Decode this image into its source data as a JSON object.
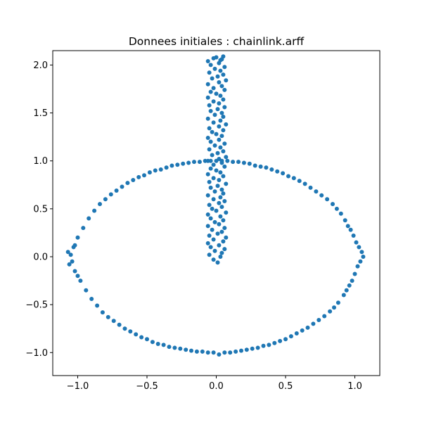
{
  "chart_data": {
    "type": "scatter",
    "title": "Donnees initiales : chainlink.arff",
    "xlabel": "",
    "ylabel": "",
    "xlim": [
      -1.18,
      1.18
    ],
    "ylim": [
      -1.24,
      2.15
    ],
    "xticks": [
      -1.0,
      -0.5,
      0.0,
      0.5,
      1.0
    ],
    "xtick_labels": [
      "−1.0",
      "−0.5",
      "0.0",
      "0.5",
      "1.0"
    ],
    "yticks": [
      -1.0,
      -0.5,
      0.0,
      0.5,
      1.0,
      1.5,
      2.0
    ],
    "ytick_labels": [
      "−1.0",
      "−0.5",
      "0.0",
      "0.5",
      "1.0",
      "1.5",
      "2.0"
    ],
    "grid": false,
    "marker_color": "#1f77b4",
    "series": [
      {
        "points": [
          [
            1.06,
            0.0
          ],
          [
            1.05,
            0.05
          ],
          [
            1.04,
            -0.05
          ],
          [
            1.03,
            0.1
          ],
          [
            1.02,
            -0.1
          ],
          [
            1.01,
            0.15
          ],
          [
            1.0,
            -0.18
          ],
          [
            0.99,
            0.22
          ],
          [
            0.98,
            -0.25
          ],
          [
            0.97,
            0.28
          ],
          [
            0.96,
            -0.3
          ],
          [
            0.95,
            0.32
          ],
          [
            0.94,
            -0.35
          ],
          [
            0.93,
            0.38
          ],
          [
            0.92,
            -0.4
          ],
          [
            0.9,
            0.45
          ],
          [
            0.88,
            -0.48
          ],
          [
            0.87,
            0.5
          ],
          [
            0.85,
            -0.53
          ],
          [
            0.84,
            0.55
          ],
          [
            0.82,
            -0.57
          ],
          [
            0.8,
            0.6
          ],
          [
            0.78,
            -0.62
          ],
          [
            0.76,
            0.64
          ],
          [
            0.74,
            -0.66
          ],
          [
            0.72,
            0.68
          ],
          [
            0.7,
            -0.7
          ],
          [
            0.68,
            0.72
          ],
          [
            0.66,
            -0.74
          ],
          [
            0.64,
            0.76
          ],
          [
            0.62,
            -0.77
          ],
          [
            0.6,
            0.79
          ],
          [
            0.58,
            -0.8
          ],
          [
            0.56,
            0.82
          ],
          [
            0.54,
            -0.83
          ],
          [
            0.52,
            0.84
          ],
          [
            0.5,
            -0.86
          ],
          [
            0.48,
            0.87
          ],
          [
            0.46,
            -0.88
          ],
          [
            0.44,
            0.89
          ],
          [
            0.42,
            -0.9
          ],
          [
            0.4,
            0.91
          ],
          [
            0.38,
            -0.92
          ],
          [
            0.36,
            0.93
          ],
          [
            0.34,
            -0.93
          ],
          [
            0.32,
            0.94
          ],
          [
            0.3,
            -0.95
          ],
          [
            0.28,
            0.95
          ],
          [
            0.26,
            -0.96
          ],
          [
            0.24,
            0.97
          ],
          [
            0.22,
            -0.97
          ],
          [
            0.2,
            0.98
          ],
          [
            0.18,
            -0.98
          ],
          [
            0.16,
            0.99
          ],
          [
            0.14,
            -0.99
          ],
          [
            0.12,
            0.99
          ],
          [
            0.1,
            -1.0
          ],
          [
            0.08,
            1.0
          ],
          [
            0.06,
            -1.0
          ],
          [
            0.04,
            1.0
          ],
          [
            0.02,
            -1.02
          ],
          [
            0.0,
            1.0
          ],
          [
            -0.02,
            -1.0
          ],
          [
            -0.04,
            1.0
          ],
          [
            -0.06,
            -1.0
          ],
          [
            -0.08,
            1.0
          ],
          [
            -0.1,
            -0.99
          ],
          [
            -0.12,
            0.99
          ],
          [
            -0.14,
            -0.99
          ],
          [
            -0.16,
            0.99
          ],
          [
            -0.18,
            -0.98
          ],
          [
            -0.2,
            0.98
          ],
          [
            -0.22,
            -0.97
          ],
          [
            -0.24,
            0.97
          ],
          [
            -0.26,
            -0.96
          ],
          [
            -0.28,
            0.96
          ],
          [
            -0.3,
            -0.95
          ],
          [
            -0.32,
            0.95
          ],
          [
            -0.34,
            -0.94
          ],
          [
            -0.36,
            0.93
          ],
          [
            -0.38,
            -0.92
          ],
          [
            -0.4,
            0.91
          ],
          [
            -0.42,
            -0.91
          ],
          [
            -0.44,
            0.9
          ],
          [
            -0.46,
            -0.89
          ],
          [
            -0.48,
            0.88
          ],
          [
            -0.5,
            -0.86
          ],
          [
            -0.52,
            0.85
          ],
          [
            -0.54,
            -0.84
          ],
          [
            -0.56,
            0.83
          ],
          [
            -0.58,
            -0.81
          ],
          [
            -0.6,
            0.8
          ],
          [
            -0.62,
            -0.78
          ],
          [
            -0.64,
            0.77
          ],
          [
            -0.66,
            -0.75
          ],
          [
            -0.68,
            0.73
          ],
          [
            -0.7,
            -0.71
          ],
          [
            -0.72,
            0.69
          ],
          [
            -0.74,
            -0.67
          ],
          [
            -0.76,
            0.65
          ],
          [
            -0.78,
            -0.63
          ],
          [
            -0.8,
            0.6
          ],
          [
            -0.82,
            -0.58
          ],
          [
            -0.84,
            0.55
          ],
          [
            -0.86,
            -0.51
          ],
          [
            -0.88,
            0.48
          ],
          [
            -0.9,
            -0.44
          ],
          [
            -0.92,
            0.4
          ],
          [
            -0.94,
            -0.35
          ],
          [
            -0.96,
            0.3
          ],
          [
            -0.98,
            -0.25
          ],
          [
            -1.0,
            0.2
          ],
          [
            -1.02,
            -0.15
          ],
          [
            -1.03,
            0.1
          ],
          [
            -1.04,
            -0.05
          ],
          [
            -1.05,
            0.02
          ],
          [
            -1.06,
            -0.08
          ],
          [
            -1.07,
            0.05
          ],
          [
            -1.02,
            0.12
          ],
          [
            -1.0,
            -0.2
          ]
        ]
      },
      {
        "points": [
          [
            0.01,
            -0.06
          ],
          [
            -0.02,
            -0.03
          ],
          [
            0.03,
            0.0
          ],
          [
            -0.05,
            0.02
          ],
          [
            0.04,
            0.04
          ],
          [
            -0.01,
            0.06
          ],
          [
            0.06,
            0.08
          ],
          [
            -0.04,
            0.1
          ],
          [
            0.02,
            0.12
          ],
          [
            -0.06,
            0.14
          ],
          [
            0.05,
            0.16
          ],
          [
            -0.02,
            0.18
          ],
          [
            0.07,
            0.2
          ],
          [
            -0.05,
            0.22
          ],
          [
            0.01,
            0.24
          ],
          [
            0.04,
            0.26
          ],
          [
            -0.03,
            0.28
          ],
          [
            0.06,
            0.3
          ],
          [
            -0.06,
            0.32
          ],
          [
            0.02,
            0.34
          ],
          [
            -0.01,
            0.36
          ],
          [
            0.05,
            0.38
          ],
          [
            -0.04,
            0.4
          ],
          [
            0.03,
            0.42
          ],
          [
            -0.06,
            0.44
          ],
          [
            0.07,
            0.46
          ],
          [
            0.0,
            0.48
          ],
          [
            -0.03,
            0.5
          ],
          [
            0.04,
            0.52
          ],
          [
            -0.05,
            0.54
          ],
          [
            0.02,
            0.56
          ],
          [
            0.06,
            0.58
          ],
          [
            -0.02,
            0.6
          ],
          [
            0.03,
            0.62
          ],
          [
            -0.06,
            0.64
          ],
          [
            0.05,
            0.66
          ],
          [
            -0.01,
            0.68
          ],
          [
            0.04,
            0.7
          ],
          [
            -0.04,
            0.72
          ],
          [
            0.01,
            0.74
          ],
          [
            0.07,
            0.76
          ],
          [
            -0.05,
            0.78
          ],
          [
            0.02,
            0.8
          ],
          [
            -0.02,
            0.82
          ],
          [
            0.05,
            0.84
          ],
          [
            -0.06,
            0.86
          ],
          [
            0.03,
            0.88
          ],
          [
            0.0,
            0.9
          ],
          [
            -0.04,
            0.92
          ],
          [
            0.06,
            0.94
          ],
          [
            -0.02,
            0.96
          ],
          [
            0.04,
            0.98
          ],
          [
            -0.06,
            1.0
          ],
          [
            0.02,
            1.02
          ],
          [
            0.07,
            1.04
          ],
          [
            -0.03,
            1.06
          ],
          [
            0.01,
            1.08
          ],
          [
            0.05,
            1.1
          ],
          [
            -0.05,
            1.12
          ],
          [
            0.03,
            1.14
          ],
          [
            -0.01,
            1.16
          ],
          [
            0.06,
            1.18
          ],
          [
            -0.04,
            1.2
          ],
          [
            0.02,
            1.22
          ],
          [
            -0.06,
            1.24
          ],
          [
            0.04,
            1.26
          ],
          [
            0.0,
            1.28
          ],
          [
            -0.03,
            1.3
          ],
          [
            0.05,
            1.32
          ],
          [
            -0.05,
            1.34
          ],
          [
            0.02,
            1.36
          ],
          [
            0.07,
            1.38
          ],
          [
            -0.02,
            1.4
          ],
          [
            0.03,
            1.42
          ],
          [
            -0.06,
            1.44
          ],
          [
            0.05,
            1.46
          ],
          [
            -0.01,
            1.48
          ],
          [
            0.04,
            1.5
          ],
          [
            -0.04,
            1.52
          ],
          [
            0.01,
            1.54
          ],
          [
            0.06,
            1.56
          ],
          [
            -0.05,
            1.58
          ],
          [
            0.02,
            1.6
          ],
          [
            -0.02,
            1.62
          ],
          [
            0.05,
            1.64
          ],
          [
            -0.06,
            1.66
          ],
          [
            0.03,
            1.68
          ],
          [
            0.0,
            1.7
          ],
          [
            -0.04,
            1.72
          ],
          [
            0.06,
            1.74
          ],
          [
            -0.02,
            1.76
          ],
          [
            0.04,
            1.78
          ],
          [
            -0.06,
            1.8
          ],
          [
            0.02,
            1.82
          ],
          [
            0.07,
            1.84
          ],
          [
            -0.03,
            1.86
          ],
          [
            0.01,
            1.88
          ],
          [
            0.05,
            1.9
          ],
          [
            -0.05,
            1.92
          ],
          [
            0.03,
            1.94
          ],
          [
            -0.01,
            1.96
          ],
          [
            0.06,
            1.98
          ],
          [
            -0.04,
            2.0
          ],
          [
            0.02,
            2.02
          ],
          [
            -0.06,
            2.04
          ],
          [
            0.04,
            2.06
          ],
          [
            0.0,
            2.08
          ],
          [
            0.05,
            2.09
          ],
          [
            -0.02,
            2.07
          ],
          [
            0.03,
            2.05
          ]
        ]
      }
    ]
  }
}
